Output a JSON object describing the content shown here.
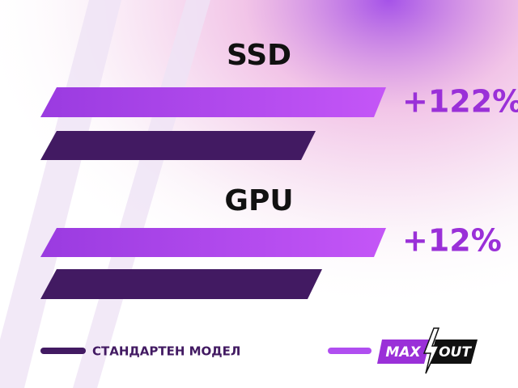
{
  "groups": [
    {
      "label": "SSD",
      "gain": "+122%"
    },
    {
      "label": "GPU",
      "gain": "+12%"
    }
  ],
  "legend": {
    "standard": "СТАНДАРТЕН МОДЕЛ",
    "brand_left": "MAX",
    "brand_right": "OUT"
  }
}
